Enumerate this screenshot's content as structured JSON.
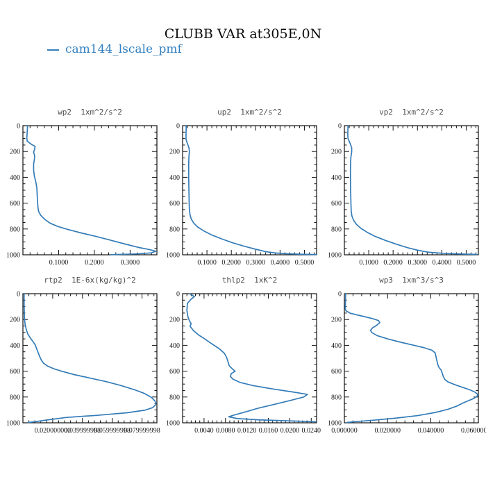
{
  "header": {
    "title": "CLUBB VAR at305E,0N",
    "legend": {
      "series": "cam144_lscale_pmf",
      "color": "#3380bf"
    }
  },
  "axis_color": "#111111",
  "chart_data": [
    {
      "id": "wp2",
      "type": "line",
      "title": "wp2  1xm^2/s^2",
      "xlabel": "",
      "ylabel": "",
      "xlim": [
        0,
        0.375
      ],
      "xticks": [
        0.1,
        0.2,
        0.3
      ],
      "xtick_labels": [
        "0.1000",
        "0.2000",
        "0.3000"
      ],
      "x_minor_step": 0.02,
      "ylim": [
        0,
        1000
      ],
      "yticks": [
        0,
        200,
        400,
        600,
        800,
        1000
      ],
      "ytick_labels": [
        "0",
        "200",
        "400",
        "600",
        "800",
        "1000"
      ],
      "y_minor_step": 50,
      "grid": false,
      "legend_position": "none",
      "series": [
        {
          "name": "cam144_lscale_pmf",
          "color": "#347cb8",
          "points": [
            [
              0.013,
              0
            ],
            [
              0.012,
              50
            ],
            [
              0.011,
              95
            ],
            [
              0.012,
              120
            ],
            [
              0.024,
              145
            ],
            [
              0.034,
              160
            ],
            [
              0.033,
              180
            ],
            [
              0.03,
              205
            ],
            [
              0.033,
              235
            ],
            [
              0.032,
              265
            ],
            [
              0.03,
              295
            ],
            [
              0.03,
              345
            ],
            [
              0.032,
              390
            ],
            [
              0.036,
              435
            ],
            [
              0.039,
              480
            ],
            [
              0.04,
              540
            ],
            [
              0.041,
              590
            ],
            [
              0.042,
              630
            ],
            [
              0.044,
              665
            ],
            [
              0.05,
              695
            ],
            [
              0.061,
              725
            ],
            [
              0.076,
              755
            ],
            [
              0.097,
              780
            ],
            [
              0.127,
              805
            ],
            [
              0.165,
              832
            ],
            [
              0.205,
              858
            ],
            [
              0.247,
              888
            ],
            [
              0.288,
              918
            ],
            [
              0.327,
              945
            ],
            [
              0.355,
              960
            ],
            [
              0.372,
              972
            ],
            [
              0.36,
              985
            ],
            [
              0.32,
              993
            ],
            [
              0.245,
              999
            ]
          ]
        }
      ]
    },
    {
      "id": "up2",
      "type": "line",
      "title": "up2  1xm^2/s^2",
      "xlabel": "",
      "ylabel": "",
      "xlim": [
        0,
        0.55
      ],
      "xticks": [
        0.1,
        0.2,
        0.3,
        0.4,
        0.5
      ],
      "xtick_labels": [
        "0.1000",
        "0.2000",
        "0.3000",
        "0.4000",
        "0.5000"
      ],
      "x_minor_step": 0.02,
      "ylim": [
        0,
        1000
      ],
      "yticks": [
        0,
        200,
        400,
        600,
        800,
        1000
      ],
      "ytick_labels": [
        "0",
        "200",
        "400",
        "600",
        "800",
        "1000"
      ],
      "y_minor_step": 50,
      "grid": false,
      "legend_position": "none",
      "series": [
        {
          "name": "cam144_lscale_pmf",
          "color": "#347cb8",
          "points": [
            [
              0.015,
              0
            ],
            [
              0.014,
              70
            ],
            [
              0.014,
              105
            ],
            [
              0.019,
              135
            ],
            [
              0.026,
              170
            ],
            [
              0.028,
              200
            ],
            [
              0.026,
              240
            ],
            [
              0.025,
              300
            ],
            [
              0.025,
              400
            ],
            [
              0.026,
              500
            ],
            [
              0.027,
              600
            ],
            [
              0.028,
              655
            ],
            [
              0.031,
              695
            ],
            [
              0.036,
              725
            ],
            [
              0.046,
              755
            ],
            [
              0.062,
              785
            ],
            [
              0.087,
              815
            ],
            [
              0.118,
              845
            ],
            [
              0.158,
              875
            ],
            [
              0.202,
              905
            ],
            [
              0.252,
              933
            ],
            [
              0.3,
              957
            ],
            [
              0.34,
              975
            ],
            [
              0.38,
              986
            ],
            [
              0.43,
              992
            ],
            [
              0.49,
              996
            ],
            [
              0.548,
              998
            ]
          ]
        }
      ]
    },
    {
      "id": "vp2",
      "type": "line",
      "title": "vp2  1xm^2/s^2",
      "xlabel": "",
      "ylabel": "",
      "xlim": [
        0,
        0.55
      ],
      "xticks": [
        0.1,
        0.2,
        0.3,
        0.4,
        0.5
      ],
      "xtick_labels": [
        "0.1000",
        "0.2000",
        "0.3000",
        "0.4000",
        "0.5000"
      ],
      "x_minor_step": 0.02,
      "ylim": [
        0,
        1000
      ],
      "yticks": [
        0,
        200,
        400,
        600,
        800,
        1000
      ],
      "ytick_labels": [
        "0",
        "200",
        "400",
        "600",
        "800",
        "1000"
      ],
      "y_minor_step": 50,
      "grid": false,
      "legend_position": "none",
      "series": [
        {
          "name": "cam144_lscale_pmf",
          "color": "#347cb8",
          "points": [
            [
              0.015,
              0
            ],
            [
              0.014,
              65
            ],
            [
              0.015,
              100
            ],
            [
              0.023,
              135
            ],
            [
              0.03,
              170
            ],
            [
              0.03,
              205
            ],
            [
              0.027,
              240
            ],
            [
              0.026,
              275
            ],
            [
              0.025,
              335
            ],
            [
              0.025,
              425
            ],
            [
              0.026,
              520
            ],
            [
              0.027,
              605
            ],
            [
              0.028,
              660
            ],
            [
              0.031,
              700
            ],
            [
              0.038,
              733
            ],
            [
              0.05,
              765
            ],
            [
              0.068,
              795
            ],
            [
              0.093,
              825
            ],
            [
              0.127,
              858
            ],
            [
              0.168,
              888
            ],
            [
              0.212,
              917
            ],
            [
              0.26,
              945
            ],
            [
              0.302,
              965
            ],
            [
              0.345,
              980
            ],
            [
              0.405,
              989
            ],
            [
              0.48,
              994
            ],
            [
              0.545,
              997
            ]
          ]
        }
      ]
    },
    {
      "id": "rtp2",
      "type": "line",
      "title": "rtp2  1E-6x(kg/kg)^2",
      "xlabel": "",
      "ylabel": "",
      "xlim": [
        0,
        0.09
      ],
      "xticks": [
        0.02,
        0.04,
        0.06,
        0.08
      ],
      "xtick_labels": [
        "0.020000000",
        "0.039999998",
        "0.059999998",
        "0.079999998"
      ],
      "x_minor_step": 0.004,
      "ylim": [
        0,
        1000
      ],
      "yticks": [
        0,
        200,
        400,
        600,
        800,
        1000
      ],
      "ytick_labels": [
        "0",
        "200",
        "400",
        "600",
        "800",
        "1000"
      ],
      "y_minor_step": 50,
      "grid": false,
      "legend_position": "none",
      "series": [
        {
          "name": "cam144_lscale_pmf",
          "color": "#347cb8",
          "points": [
            [
              0.0008,
              0
            ],
            [
              0.0008,
              90
            ],
            [
              0.001,
              170
            ],
            [
              0.0013,
              225
            ],
            [
              0.0022,
              275
            ],
            [
              0.0032,
              310
            ],
            [
              0.0048,
              340
            ],
            [
              0.0066,
              368
            ],
            [
              0.0082,
              395
            ],
            [
              0.0092,
              425
            ],
            [
              0.0102,
              455
            ],
            [
              0.0112,
              485
            ],
            [
              0.0124,
              515
            ],
            [
              0.014,
              540
            ],
            [
              0.0165,
              560
            ],
            [
              0.0205,
              580
            ],
            [
              0.0265,
              602
            ],
            [
              0.0345,
              627
            ],
            [
              0.0445,
              652
            ],
            [
              0.0555,
              680
            ],
            [
              0.0655,
              710
            ],
            [
              0.0745,
              742
            ],
            [
              0.0815,
              772
            ],
            [
              0.0862,
              802
            ],
            [
              0.0888,
              832
            ],
            [
              0.0893,
              858
            ],
            [
              0.0872,
              882
            ],
            [
              0.082,
              902
            ],
            [
              0.07,
              922
            ],
            [
              0.05,
              942
            ],
            [
              0.0295,
              958
            ],
            [
              0.018,
              975
            ],
            [
              0.009,
              990
            ],
            [
              0.0035,
              998
            ]
          ]
        }
      ]
    },
    {
      "id": "thlp2",
      "type": "line",
      "title": "thlp2  1xK^2",
      "xlabel": "",
      "ylabel": "",
      "xlim": [
        0,
        0.025
      ],
      "xticks": [
        0.004,
        0.008,
        0.012,
        0.016,
        0.02,
        0.024
      ],
      "xtick_labels": [
        "0.0040",
        "0.0080",
        "0.0120",
        "0.0160",
        "0.0200",
        "0.0240"
      ],
      "x_minor_step": 0.0008,
      "ylim": [
        0,
        1000
      ],
      "yticks": [
        0,
        200,
        400,
        600,
        800,
        1000
      ],
      "ytick_labels": [
        "0",
        "200",
        "400",
        "600",
        "800",
        "1000"
      ],
      "y_minor_step": 50,
      "grid": false,
      "legend_position": "none",
      "series": [
        {
          "name": "cam144_lscale_pmf",
          "color": "#347cb8",
          "points": [
            [
              0.0013,
              0
            ],
            [
              0.0022,
              22
            ],
            [
              0.0016,
              42
            ],
            [
              0.0009,
              75
            ],
            [
              0.0008,
              130
            ],
            [
              0.001,
              180
            ],
            [
              0.0013,
              212
            ],
            [
              0.0016,
              232
            ],
            [
              0.0014,
              252
            ],
            [
              0.002,
              285
            ],
            [
              0.003,
              320
            ],
            [
              0.0043,
              355
            ],
            [
              0.0056,
              392
            ],
            [
              0.0069,
              428
            ],
            [
              0.0078,
              462
            ],
            [
              0.0082,
              492
            ],
            [
              0.0085,
              530
            ],
            [
              0.0087,
              558
            ],
            [
              0.0093,
              583
            ],
            [
              0.0098,
              600
            ],
            [
              0.0091,
              618
            ],
            [
              0.0089,
              640
            ],
            [
              0.0094,
              662
            ],
            [
              0.0107,
              687
            ],
            [
              0.0132,
              712
            ],
            [
              0.0167,
              737
            ],
            [
              0.0207,
              762
            ],
            [
              0.0233,
              780
            ],
            [
              0.0226,
              800
            ],
            [
              0.0201,
              827
            ],
            [
              0.0171,
              857
            ],
            [
              0.0141,
              887
            ],
            [
              0.0116,
              917
            ],
            [
              0.0096,
              940
            ],
            [
              0.0086,
              953
            ],
            [
              0.0102,
              967
            ],
            [
              0.0143,
              977
            ],
            [
              0.02,
              985
            ],
            [
              0.0248,
              992
            ]
          ]
        }
      ]
    },
    {
      "id": "wp3",
      "type": "line",
      "title": "wp3  1xm^3/s^3",
      "xlabel": "",
      "ylabel": "",
      "xlim": [
        0,
        0.062
      ],
      "xticks": [
        0,
        0.02,
        0.04,
        0.06
      ],
      "xtick_labels": [
        "0.000000",
        "0.020000",
        "0.040000",
        "0.060000"
      ],
      "x_minor_step": 0.004,
      "ylim": [
        0,
        1000
      ],
      "yticks": [
        0,
        200,
        400,
        600,
        800,
        1000
      ],
      "ytick_labels": [
        "0",
        "200",
        "400",
        "600",
        "800",
        "1000"
      ],
      "y_minor_step": 50,
      "grid": false,
      "legend_position": "none",
      "series": [
        {
          "name": "cam144_lscale_pmf",
          "color": "#347cb8",
          "points": [
            [
              0.0006,
              0
            ],
            [
              0.0005,
              75
            ],
            [
              0.0004,
              115
            ],
            [
              0.0007,
              132
            ],
            [
              0.0028,
              152
            ],
            [
              0.0078,
              172
            ],
            [
              0.0128,
              192
            ],
            [
              0.0158,
              208
            ],
            [
              0.0164,
              224
            ],
            [
              0.015,
              244
            ],
            [
              0.0131,
              264
            ],
            [
              0.0121,
              283
            ],
            [
              0.0126,
              300
            ],
            [
              0.0152,
              325
            ],
            [
              0.02,
              350
            ],
            [
              0.0258,
              375
            ],
            [
              0.0318,
              398
            ],
            [
              0.0368,
              418
            ],
            [
              0.0405,
              438
            ],
            [
              0.042,
              458
            ],
            [
              0.0424,
              488
            ],
            [
              0.0428,
              518
            ],
            [
              0.0432,
              548
            ],
            [
              0.0438,
              572
            ],
            [
              0.0448,
              592
            ],
            [
              0.0452,
              612
            ],
            [
              0.0458,
              642
            ],
            [
              0.0464,
              663
            ],
            [
              0.048,
              684
            ],
            [
              0.051,
              704
            ],
            [
              0.0545,
              724
            ],
            [
              0.058,
              744
            ],
            [
              0.0604,
              762
            ],
            [
              0.0617,
              780
            ],
            [
              0.0614,
              795
            ],
            [
              0.0598,
              812
            ],
            [
              0.0572,
              830
            ],
            [
              0.0551,
              845
            ],
            [
              0.0521,
              870
            ],
            [
              0.048,
              895
            ],
            [
              0.042,
              920
            ],
            [
              0.034,
              944
            ],
            [
              0.0242,
              963
            ],
            [
              0.0145,
              978
            ],
            [
              0.0065,
              989
            ],
            [
              0.0012,
              997
            ]
          ]
        }
      ]
    }
  ]
}
